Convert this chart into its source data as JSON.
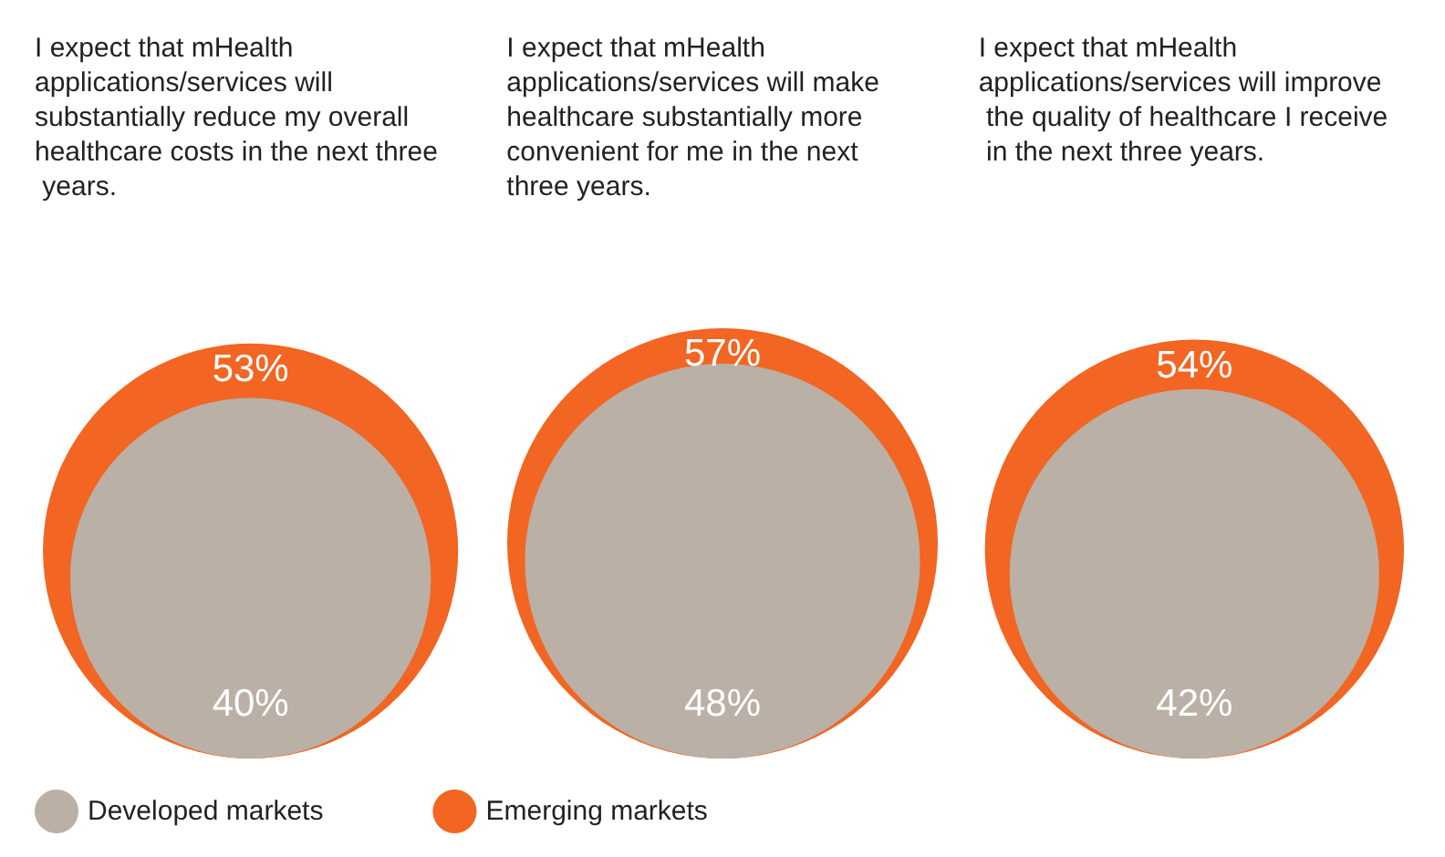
{
  "chart_data": {
    "type": "other",
    "categories": [
      "I expect that mHealth applications/services will substantially reduce my overall healthcare costs in the next three years.",
      "I expect that mHealth applications/services will make healthcare substantially more convenient for me in the next three years.",
      "I expect that mHealth applications/services will improve the quality of healthcare I receive in the next three years."
    ],
    "series": [
      {
        "name": "Developed markets",
        "color": "#bab0a5",
        "values": [
          40,
          48,
          42
        ],
        "value_labels": [
          "40%",
          "48%",
          "42%"
        ]
      },
      {
        "name": "Emerging markets",
        "color": "#f26522",
        "values": [
          53,
          57,
          54
        ],
        "value_labels": [
          "53%",
          "57%",
          "54%"
        ]
      }
    ],
    "legend": "bottom left"
  }
}
